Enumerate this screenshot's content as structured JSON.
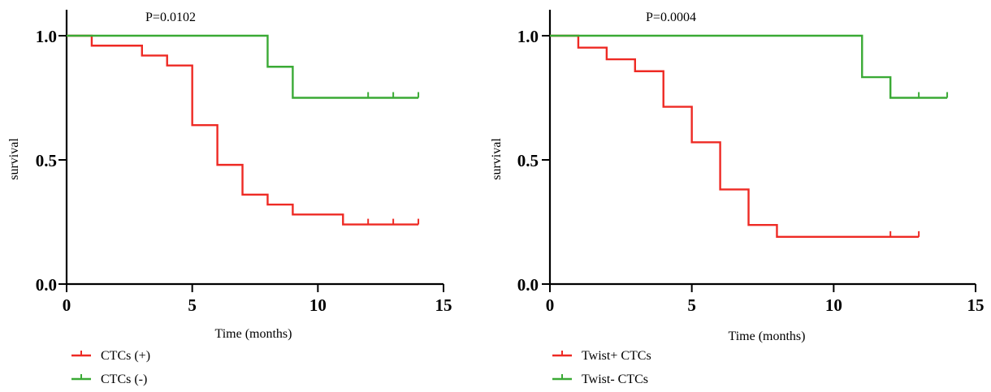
{
  "chart_data": [
    {
      "type": "line",
      "subtype": "kaplan-meier-step",
      "annotation": "P=0.0102",
      "xlabel": "Time (months)",
      "ylabel": "survival",
      "xlim": [
        0,
        15
      ],
      "ylim": [
        0,
        1.0
      ],
      "xticks": [
        "0",
        "5",
        "10",
        "15"
      ],
      "yticks": [
        "0.0",
        "0.5",
        "1.0"
      ],
      "grid": false,
      "legend_position": "bottom-left",
      "series": [
        {
          "name": "CTCs (+)",
          "color": "#ee2a24",
          "steps": [
            [
              0,
              1.0
            ],
            [
              1,
              0.96
            ],
            [
              3,
              0.92
            ],
            [
              4,
              0.88
            ],
            [
              5,
              0.64
            ],
            [
              6,
              0.48
            ],
            [
              7,
              0.36
            ],
            [
              8,
              0.32
            ],
            [
              9,
              0.28
            ],
            [
              11,
              0.24
            ],
            [
              14,
              0.24
            ]
          ],
          "censored": [
            12,
            13,
            14
          ]
        },
        {
          "name": "CTCs (-)",
          "color": "#3aaa35",
          "steps": [
            [
              0,
              1.0
            ],
            [
              8,
              0.875
            ],
            [
              9,
              0.75
            ],
            [
              14,
              0.75
            ]
          ],
          "censored": [
            12,
            13,
            14
          ]
        }
      ]
    },
    {
      "type": "line",
      "subtype": "kaplan-meier-step",
      "annotation": "P=0.0004",
      "xlabel": "Time (months)",
      "ylabel": "survival",
      "xlim": [
        0,
        15
      ],
      "ylim": [
        0,
        1.0
      ],
      "xticks": [
        "0",
        "5",
        "10",
        "15"
      ],
      "yticks": [
        "0.0",
        "0.5",
        "1.0"
      ],
      "grid": false,
      "legend_position": "bottom-left",
      "series": [
        {
          "name": "Twist+ CTCs",
          "color": "#ee2a24",
          "steps": [
            [
              0,
              1.0
            ],
            [
              1,
              0.952
            ],
            [
              2,
              0.905
            ],
            [
              3,
              0.857
            ],
            [
              4,
              0.714
            ],
            [
              5,
              0.571
            ],
            [
              6,
              0.381
            ],
            [
              7,
              0.238
            ],
            [
              8,
              0.19
            ],
            [
              13,
              0.19
            ]
          ],
          "censored": [
            12,
            13
          ]
        },
        {
          "name": "Twist- CTCs",
          "color": "#3aaa35",
          "steps": [
            [
              0,
              1.0
            ],
            [
              11,
              0.833
            ],
            [
              12,
              0.75
            ],
            [
              14,
              0.75
            ]
          ],
          "censored": [
            13,
            14
          ]
        }
      ]
    }
  ]
}
